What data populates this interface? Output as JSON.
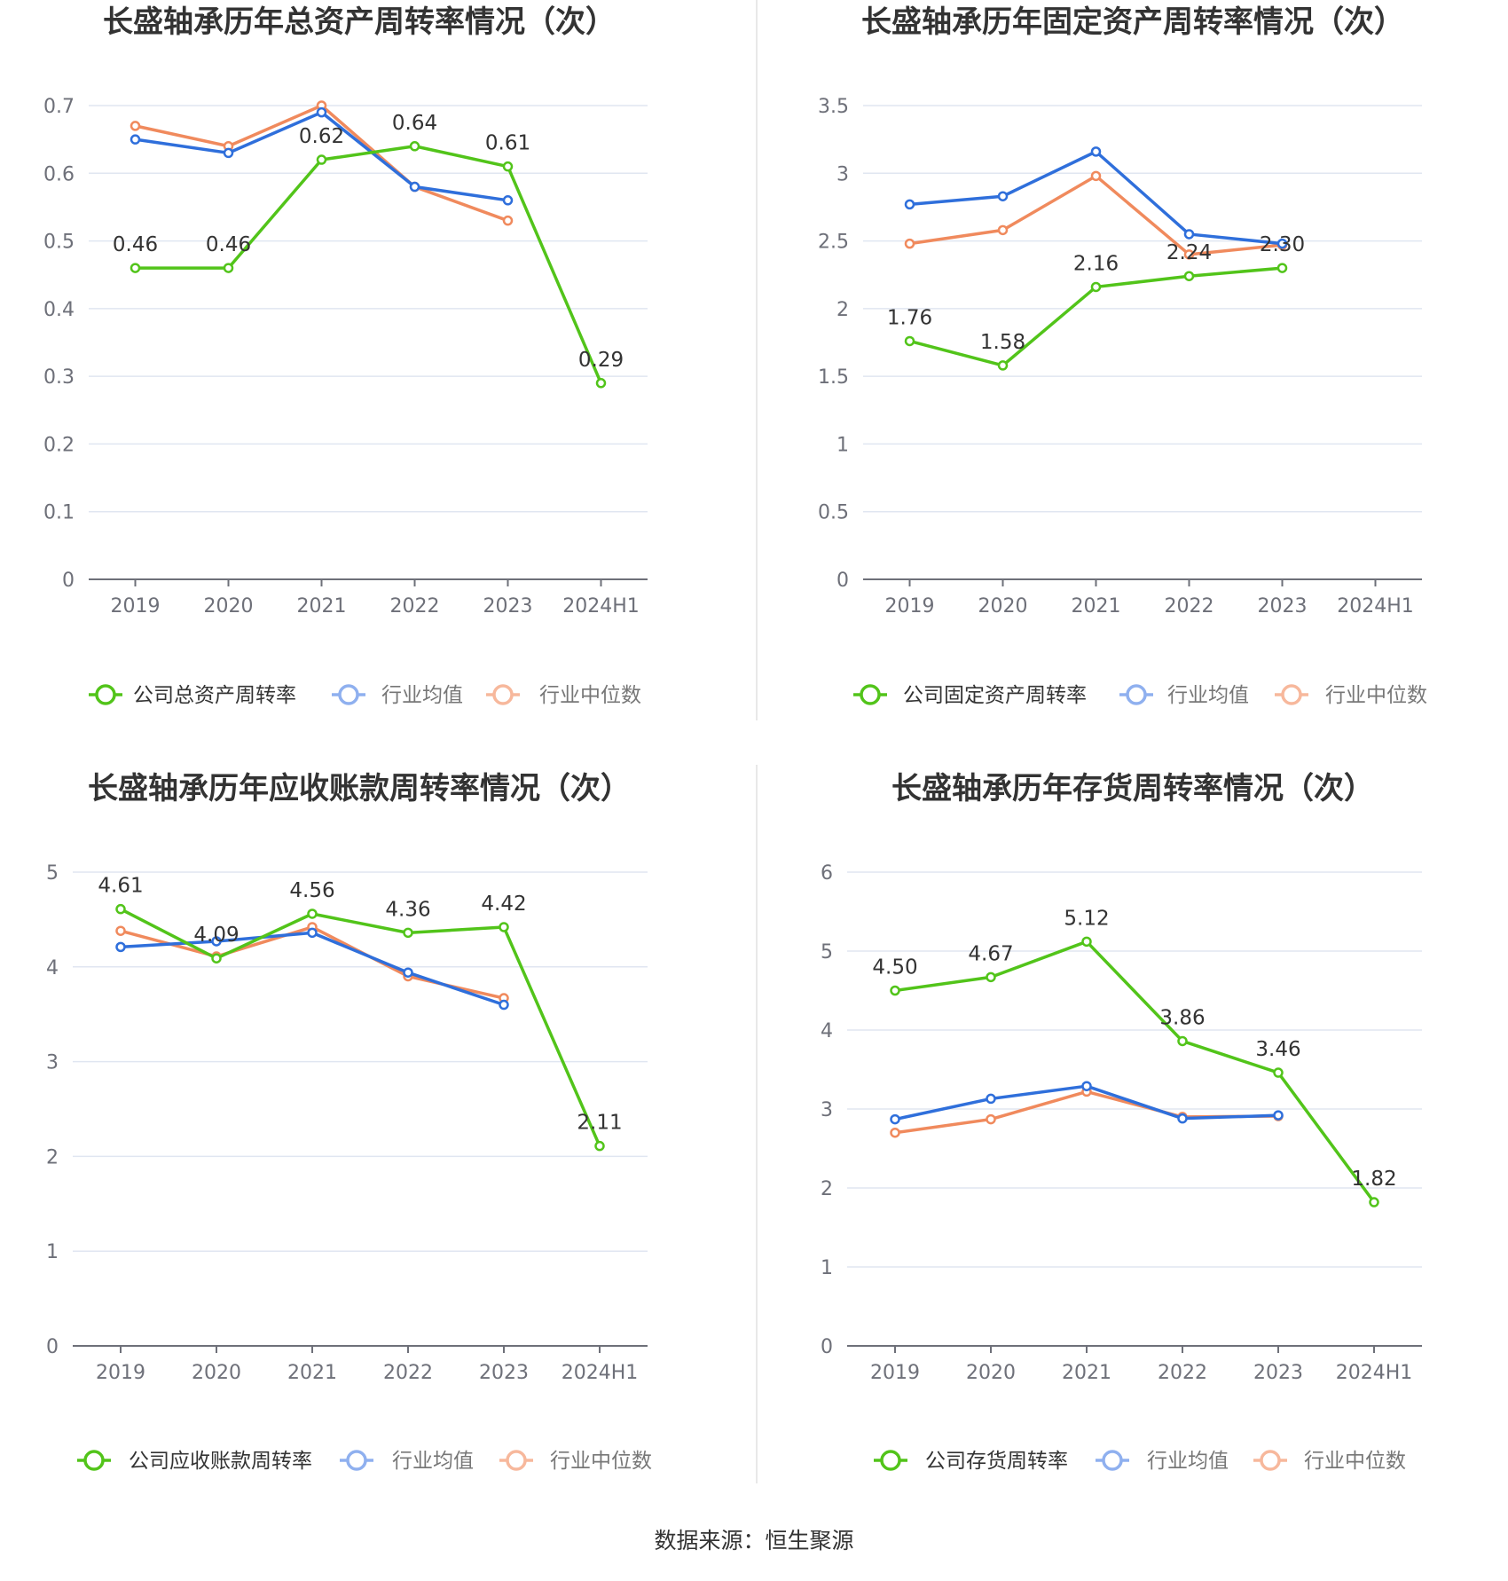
{
  "source": "数据来源：恒生聚源",
  "colors": {
    "company": "#52c41a",
    "avg": "#2f6fdb",
    "median": "#f08a5d",
    "avg_legend": "#8fb0ef",
    "median_legend": "#f7b89c",
    "grid": "#e0e6f1",
    "axis": "#6e7079"
  },
  "chart_data": [
    {
      "type": "line",
      "title": "长盛轴承历年总资产周转率情况（次）",
      "categories": [
        "2019",
        "2020",
        "2021",
        "2022",
        "2023",
        "2024H1"
      ],
      "ylim": [
        0,
        0.7
      ],
      "yticks": [
        0,
        0.1,
        0.2,
        0.3,
        0.4,
        0.5,
        0.6,
        0.7
      ],
      "ytick_labels": [
        "0",
        "0.1",
        "0.2",
        "0.3",
        "0.4",
        "0.5",
        "0.6",
        "0.7"
      ],
      "series": [
        {
          "name": "公司总资产周转率",
          "values": [
            0.46,
            0.46,
            0.62,
            0.64,
            0.61,
            0.29
          ],
          "labels": [
            "0.46",
            "0.46",
            "0.62",
            "0.64",
            "0.61",
            "0.29"
          ]
        },
        {
          "name": "行业均值",
          "values": [
            0.65,
            0.63,
            0.69,
            0.58,
            0.56,
            null
          ]
        },
        {
          "name": "行业中位数",
          "values": [
            0.67,
            0.64,
            0.7,
            0.58,
            0.53,
            null
          ]
        }
      ]
    },
    {
      "type": "line",
      "title": "长盛轴承历年固定资产周转率情况（次）",
      "categories": [
        "2019",
        "2020",
        "2021",
        "2022",
        "2023",
        "2024H1"
      ],
      "ylim": [
        0,
        3.5
      ],
      "yticks": [
        0,
        0.5,
        1,
        1.5,
        2,
        2.5,
        3,
        3.5
      ],
      "ytick_labels": [
        "0",
        "0.5",
        "1",
        "1.5",
        "2",
        "2.5",
        "3",
        "3.5"
      ],
      "series": [
        {
          "name": "公司固定资产周转率",
          "values": [
            1.76,
            1.58,
            2.16,
            2.24,
            2.3,
            null
          ],
          "labels": [
            "1.76",
            "1.58",
            "2.16",
            "2.24",
            "2.30",
            ""
          ]
        },
        {
          "name": "行业均值",
          "values": [
            2.77,
            2.83,
            3.16,
            2.55,
            2.48,
            null
          ]
        },
        {
          "name": "行业中位数",
          "values": [
            2.48,
            2.58,
            2.98,
            2.4,
            2.47,
            null
          ]
        }
      ]
    },
    {
      "type": "line",
      "title": "长盛轴承历年应收账款周转率情况（次）",
      "categories": [
        "2019",
        "2020",
        "2021",
        "2022",
        "2023",
        "2024H1"
      ],
      "ylim": [
        0,
        5
      ],
      "yticks": [
        0,
        1,
        2,
        3,
        4,
        5
      ],
      "ytick_labels": [
        "0",
        "1",
        "2",
        "3",
        "4",
        "5"
      ],
      "series": [
        {
          "name": "公司应收账款周转率",
          "values": [
            4.61,
            4.09,
            4.56,
            4.36,
            4.42,
            2.11
          ],
          "labels": [
            "4.61",
            "4.09",
            "4.56",
            "4.36",
            "4.42",
            "2.11"
          ]
        },
        {
          "name": "行业均值",
          "values": [
            4.21,
            4.27,
            4.36,
            3.94,
            3.6,
            null
          ]
        },
        {
          "name": "行业中位数",
          "values": [
            4.38,
            4.11,
            4.42,
            3.9,
            3.67,
            null
          ]
        }
      ]
    },
    {
      "type": "line",
      "title": "长盛轴承历年存货周转率情况（次）",
      "categories": [
        "2019",
        "2020",
        "2021",
        "2022",
        "2023",
        "2024H1"
      ],
      "ylim": [
        0,
        6
      ],
      "yticks": [
        0,
        1,
        2,
        3,
        4,
        5,
        6
      ],
      "ytick_labels": [
        "0",
        "1",
        "2",
        "3",
        "4",
        "5",
        "6"
      ],
      "series": [
        {
          "name": "公司存货周转率",
          "values": [
            4.5,
            4.67,
            5.12,
            3.86,
            3.46,
            1.82
          ],
          "labels": [
            "4.50",
            "4.67",
            "5.12",
            "3.86",
            "3.46",
            "1.82"
          ]
        },
        {
          "name": "行业均值",
          "values": [
            2.87,
            3.13,
            3.29,
            2.88,
            2.92,
            null
          ]
        },
        {
          "name": "行业中位数",
          "values": [
            2.7,
            2.87,
            3.22,
            2.9,
            2.91,
            null
          ]
        }
      ]
    }
  ]
}
